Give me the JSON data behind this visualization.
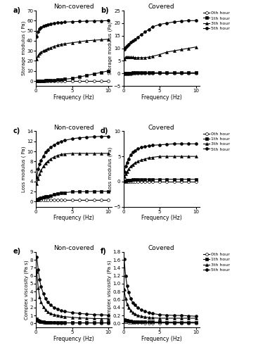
{
  "freq": [
    0.1,
    0.3,
    0.5,
    0.7,
    1.0,
    1.3,
    1.6,
    2.0,
    2.5,
    3.0,
    3.5,
    4.0,
    5.0,
    6.0,
    7.0,
    8.0,
    9.0,
    10.0
  ],
  "panel_a": {
    "title": "Non-covered",
    "ylabel": "Storage modulus ( Pa)",
    "xlabel": "Frequency (Hz)",
    "ylim": [
      -5,
      70
    ],
    "yticks": [
      0,
      10,
      20,
      30,
      40,
      50,
      60,
      70
    ],
    "series": {
      "0th_hour": [
        0.05,
        0.05,
        0.05,
        0.05,
        0.05,
        0.05,
        0.05,
        0.05,
        0.05,
        0.05,
        0.05,
        0.05,
        0.05,
        0.05,
        0.05,
        0.05,
        0.05,
        0.05
      ],
      "1th_hour": [
        0.08,
        0.1,
        0.15,
        0.2,
        0.3,
        0.5,
        0.6,
        0.7,
        0.9,
        1.1,
        1.4,
        1.8,
        2.5,
        4.0,
        5.5,
        7.0,
        8.5,
        10.0
      ],
      "3th_hour": [
        22.0,
        25.0,
        27.0,
        28.5,
        30.0,
        31.0,
        32.0,
        33.0,
        34.5,
        35.5,
        36.5,
        37.0,
        38.0,
        39.0,
        40.0,
        40.5,
        41.0,
        41.5
      ],
      "5th_hour": [
        44.0,
        49.0,
        51.5,
        53.0,
        54.5,
        55.5,
        56.0,
        57.0,
        57.5,
        58.0,
        58.3,
        58.5,
        59.0,
        59.2,
        59.5,
        59.7,
        59.8,
        60.0
      ]
    }
  },
  "panel_b": {
    "title": "Covered",
    "ylabel": "Storage modulus (Pa)",
    "xlabel": "Frequency (Hz)",
    "ylim": [
      -5,
      25
    ],
    "yticks": [
      -5,
      0,
      5,
      10,
      15,
      20,
      25
    ],
    "series": {
      "0th_hour": [
        -0.1,
        -0.1,
        -0.1,
        -0.1,
        -0.1,
        -0.05,
        0.0,
        0.0,
        0.0,
        0.0,
        0.0,
        0.0,
        0.0,
        0.0,
        0.0,
        0.0,
        0.0,
        0.0
      ],
      "1th_hour": [
        0.1,
        0.1,
        0.1,
        0.15,
        0.2,
        0.25,
        0.3,
        0.3,
        0.3,
        0.3,
        0.3,
        0.3,
        0.3,
        0.3,
        0.3,
        0.3,
        0.3,
        0.3
      ],
      "3th_hour": [
        5.8,
        6.5,
        6.5,
        6.5,
        6.5,
        6.4,
        6.3,
        6.3,
        6.3,
        6.3,
        6.5,
        6.8,
        7.5,
        8.5,
        9.0,
        9.5,
        10.0,
        10.5
      ],
      "5th_hour": [
        9.5,
        10.5,
        11.0,
        11.5,
        12.3,
        13.0,
        13.5,
        14.5,
        15.5,
        16.5,
        17.5,
        18.5,
        19.5,
        20.0,
        20.5,
        20.8,
        21.0,
        21.0
      ]
    }
  },
  "panel_c": {
    "title": "Non-covered",
    "ylabel": "Loss modulus ( Pa)",
    "xlabel": "Frequency (Hz)",
    "ylim": [
      -1,
      14
    ],
    "yticks": [
      0,
      2,
      4,
      6,
      8,
      10,
      12,
      14
    ],
    "series": {
      "0th_hour": [
        0.3,
        0.3,
        0.3,
        0.3,
        0.3,
        0.3,
        0.3,
        0.3,
        0.28,
        0.28,
        0.28,
        0.28,
        0.28,
        0.28,
        0.28,
        0.28,
        0.28,
        0.28
      ],
      "1th_hour": [
        0.4,
        0.5,
        0.6,
        0.7,
        0.85,
        1.0,
        1.1,
        1.2,
        1.4,
        1.55,
        1.7,
        1.8,
        1.95,
        2.0,
        2.0,
        2.05,
        2.05,
        2.05
      ],
      "3th_hour": [
        3.5,
        4.5,
        5.5,
        6.2,
        7.0,
        7.6,
        8.0,
        8.5,
        8.9,
        9.2,
        9.4,
        9.5,
        9.6,
        9.6,
        9.6,
        9.6,
        9.6,
        9.6
      ],
      "5th_hour": [
        4.8,
        6.5,
        7.5,
        8.2,
        9.0,
        9.8,
        10.3,
        10.8,
        11.3,
        11.7,
        12.0,
        12.2,
        12.5,
        12.7,
        12.8,
        12.9,
        13.0,
        13.0
      ]
    }
  },
  "panel_d": {
    "title": "Covered",
    "ylabel": "Loss modulus (Pa)",
    "xlabel": "Frequency (Hz)",
    "ylim": [
      -5,
      10
    ],
    "yticks": [
      -5,
      0,
      5,
      10
    ],
    "series": {
      "0th_hour": [
        0.05,
        0.05,
        0.05,
        0.05,
        0.05,
        0.05,
        0.05,
        0.05,
        0.05,
        0.05,
        0.05,
        0.05,
        0.05,
        0.05,
        0.05,
        0.05,
        0.05,
        0.05
      ],
      "1th_hour": [
        0.1,
        0.15,
        0.2,
        0.25,
        0.3,
        0.35,
        0.38,
        0.4,
        0.42,
        0.43,
        0.44,
        0.45,
        0.45,
        0.45,
        0.45,
        0.45,
        0.45,
        0.45
      ],
      "3th_hour": [
        1.0,
        1.5,
        2.0,
        2.5,
        3.0,
        3.4,
        3.7,
        4.0,
        4.3,
        4.5,
        4.7,
        4.8,
        5.0,
        5.0,
        5.0,
        5.0,
        5.0,
        5.0
      ],
      "5th_hour": [
        2.0,
        3.0,
        3.8,
        4.5,
        5.3,
        5.8,
        6.2,
        6.5,
        6.8,
        7.0,
        7.1,
        7.2,
        7.3,
        7.4,
        7.5,
        7.5,
        7.5,
        7.5
      ]
    }
  },
  "panel_e": {
    "title": "Non-covered",
    "ylabel": "Complex viscosity (Pa s)",
    "xlabel": "Frequency (Hz)",
    "ylim": [
      -0.5,
      9
    ],
    "yticks": [
      0,
      1,
      2,
      3,
      4,
      5,
      6,
      7,
      8,
      9
    ],
    "series": {
      "0th_hour": [
        0.5,
        0.3,
        0.2,
        0.18,
        0.15,
        0.12,
        0.1,
        0.09,
        0.08,
        0.07,
        0.07,
        0.06,
        0.06,
        0.05,
        0.05,
        0.05,
        0.05,
        0.05
      ],
      "1th_hour": [
        0.55,
        0.38,
        0.28,
        0.22,
        0.18,
        0.15,
        0.13,
        0.11,
        0.1,
        0.09,
        0.09,
        0.08,
        0.08,
        0.08,
        0.08,
        0.08,
        0.08,
        0.08
      ],
      "3th_hour": [
        6.5,
        4.5,
        3.3,
        2.7,
        2.1,
        1.7,
        1.45,
        1.25,
        1.1,
        1.0,
        0.9,
        0.85,
        0.75,
        0.7,
        0.65,
        0.62,
        0.6,
        0.58
      ],
      "5th_hour": [
        8.4,
        6.8,
        5.5,
        4.6,
        3.8,
        3.1,
        2.7,
        2.3,
        2.0,
        1.8,
        1.6,
        1.5,
        1.35,
        1.25,
        1.18,
        1.12,
        1.08,
        1.05
      ]
    }
  },
  "panel_f": {
    "title": "Covered",
    "ylabel": "Complex viscosity (Pa s)",
    "xlabel": "Frequency (Hz)",
    "ylim": [
      -0.1,
      1.8
    ],
    "yticks": [
      0.0,
      0.2,
      0.4,
      0.6,
      0.8,
      1.0,
      1.2,
      1.4,
      1.6,
      1.8
    ],
    "series": {
      "0th_hour": [
        0.05,
        0.04,
        0.035,
        0.03,
        0.025,
        0.022,
        0.02,
        0.018,
        0.016,
        0.015,
        0.014,
        0.013,
        0.012,
        0.011,
        0.011,
        0.01,
        0.01,
        0.01
      ],
      "1th_hour": [
        0.1,
        0.08,
        0.07,
        0.06,
        0.055,
        0.05,
        0.048,
        0.045,
        0.042,
        0.04,
        0.038,
        0.036,
        0.034,
        0.033,
        0.032,
        0.031,
        0.03,
        0.03
      ],
      "3th_hour": [
        0.85,
        0.62,
        0.48,
        0.4,
        0.32,
        0.27,
        0.24,
        0.2,
        0.18,
        0.16,
        0.15,
        0.14,
        0.13,
        0.13,
        0.13,
        0.13,
        0.13,
        0.13
      ],
      "5th_hour": [
        1.62,
        1.2,
        0.95,
        0.78,
        0.62,
        0.52,
        0.46,
        0.39,
        0.34,
        0.3,
        0.27,
        0.25,
        0.22,
        0.21,
        0.2,
        0.2,
        0.19,
        0.18
      ]
    }
  },
  "legend_labels": [
    "0th hour",
    "1th hour",
    "3th hour",
    "5th hour"
  ],
  "markers": [
    "o",
    "s",
    "^",
    "o"
  ],
  "markersizes": [
    2.5,
    2.5,
    2.5,
    2.5
  ],
  "colors": [
    "black",
    "black",
    "black",
    "black"
  ],
  "panel_labels": [
    "a)",
    "b)",
    "c)",
    "d)",
    "e)",
    "f)"
  ]
}
